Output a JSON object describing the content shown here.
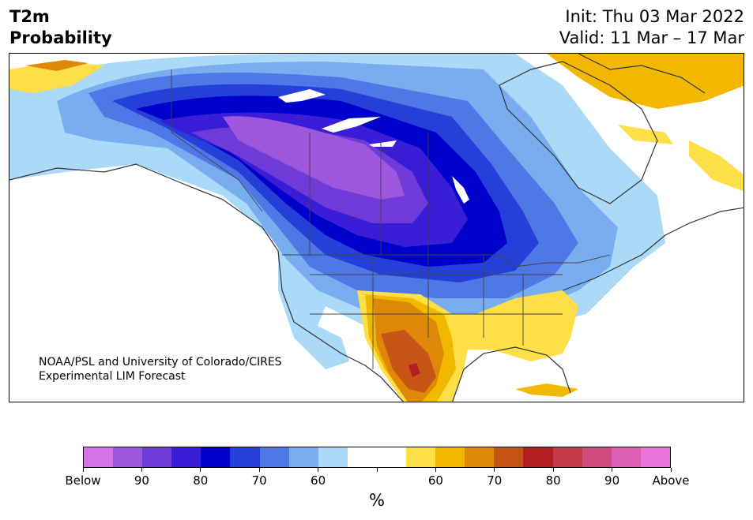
{
  "title": {
    "line1": "T2m",
    "line2": "Probability"
  },
  "init": {
    "line1": "Init: Thu 03 Mar 2022",
    "line2": "Valid: 11 Mar – 17 Mar"
  },
  "credit": {
    "line1": "NOAA/PSL and University of Colorado/CIRES",
    "line2": "Experimental LIM Forecast"
  },
  "colorbar": {
    "colors": [
      "#d673e8",
      "#9e58e0",
      "#6e3ad8",
      "#3a1dd6",
      "#0000cc",
      "#2440d8",
      "#4e78e6",
      "#78aef0",
      "#aadaf8",
      "#ffffff",
      "#ffffff",
      "#ffdf48",
      "#f2b800",
      "#de8808",
      "#c75516",
      "#b21e22",
      "#c23848",
      "#d04c7e",
      "#de60b6",
      "#e876dc"
    ],
    "tick_labels": [
      "Below",
      "90",
      "80",
      "70",
      "60",
      "",
      "60",
      "70",
      "80",
      "90",
      "Above"
    ],
    "unit": "%"
  }
}
